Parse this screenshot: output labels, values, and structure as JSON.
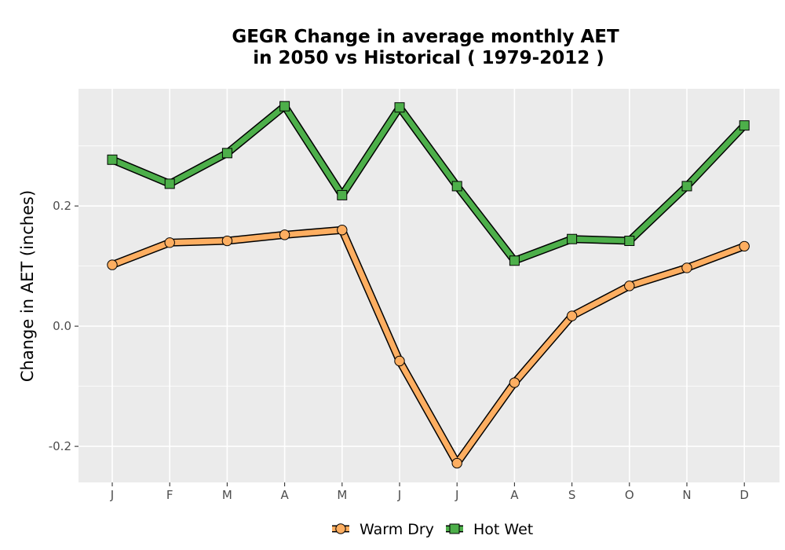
{
  "chart_data": {
    "type": "line",
    "title_lines": [
      "GEGR  Change in average monthly AET",
      "in 2050 vs Historical ( 1979-2012 )"
    ],
    "xlabel": "",
    "ylabel": "Change in AET (inches)",
    "categories": [
      "J",
      "F",
      "M",
      "A",
      "M",
      "J",
      "J",
      "A",
      "S",
      "O",
      "N",
      "D"
    ],
    "ylim": [
      -0.26,
      0.395
    ],
    "y_ticks": [
      -0.2,
      0.0,
      0.2
    ],
    "y_tick_labels": [
      "-0.2",
      "0.0",
      "0.2"
    ],
    "grid": true,
    "legend_position": "bottom",
    "series": [
      {
        "name": "Warm Dry",
        "marker": "circle",
        "color": "#fdae61",
        "values": [
          0.102,
          0.139,
          0.142,
          0.152,
          0.16,
          -0.058,
          -0.228,
          -0.094,
          0.017,
          0.067,
          0.097,
          0.133
        ]
      },
      {
        "name": "Hot Wet",
        "marker": "square",
        "color": "#4daf4a",
        "values": [
          0.277,
          0.237,
          0.288,
          0.366,
          0.218,
          0.364,
          0.233,
          0.109,
          0.145,
          0.142,
          0.233,
          0.334
        ]
      }
    ]
  }
}
